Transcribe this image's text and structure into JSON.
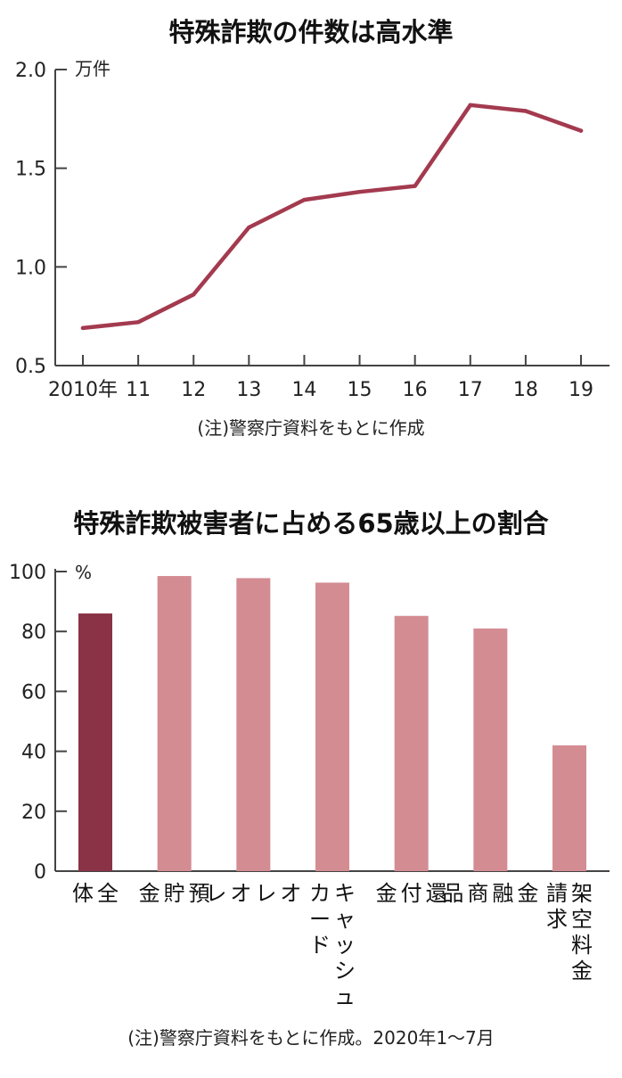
{
  "colors": {
    "line": "#a33a4f",
    "bar_highlight": "#8a3246",
    "bar_normal": "#d48c93"
  },
  "chart_data": [
    {
      "type": "line",
      "title": "特殊詐欺の件数は高水準",
      "unit": "万件",
      "x": [
        "2010年",
        "11",
        "12",
        "13",
        "14",
        "15",
        "16",
        "17",
        "18",
        "19"
      ],
      "series": [
        {
          "values": [
            0.69,
            0.72,
            0.86,
            1.2,
            1.34,
            1.38,
            1.41,
            1.82,
            1.79,
            1.69
          ]
        }
      ],
      "y_ticks": [
        "0.5",
        "1.0",
        "1.5",
        "2.0"
      ],
      "ylim": [
        0.5,
        2.0
      ],
      "grid": false,
      "note": "(注)警察庁資料をもとに作成"
    },
    {
      "type": "bar",
      "title": "特殊詐欺被害者に占める65歳以上の割合",
      "unit": "%",
      "categories": [
        {
          "lines": [
            "全",
            "体"
          ]
        },
        {
          "lines": [
            "預",
            "貯",
            "金"
          ]
        },
        {
          "lines": [
            "オ",
            "レ",
            "オ",
            "レ"
          ]
        },
        {
          "lines": [
            "キャッシュ",
            "カード"
          ]
        },
        {
          "lines": [
            "還",
            "付",
            "金"
          ]
        },
        {
          "lines": [
            "金",
            "融",
            "商",
            "品"
          ]
        },
        {
          "lines": [
            "架空料金",
            "請求"
          ]
        }
      ],
      "values": [
        86,
        98.5,
        97.8,
        96.3,
        85.2,
        81,
        42
      ],
      "highlight_index": 0,
      "y_ticks": [
        "0",
        "20",
        "40",
        "60",
        "80",
        "100"
      ],
      "ylim": [
        0,
        100
      ],
      "grid": false,
      "note": "(注)警察庁資料をもとに作成。2020年1～7月"
    }
  ]
}
